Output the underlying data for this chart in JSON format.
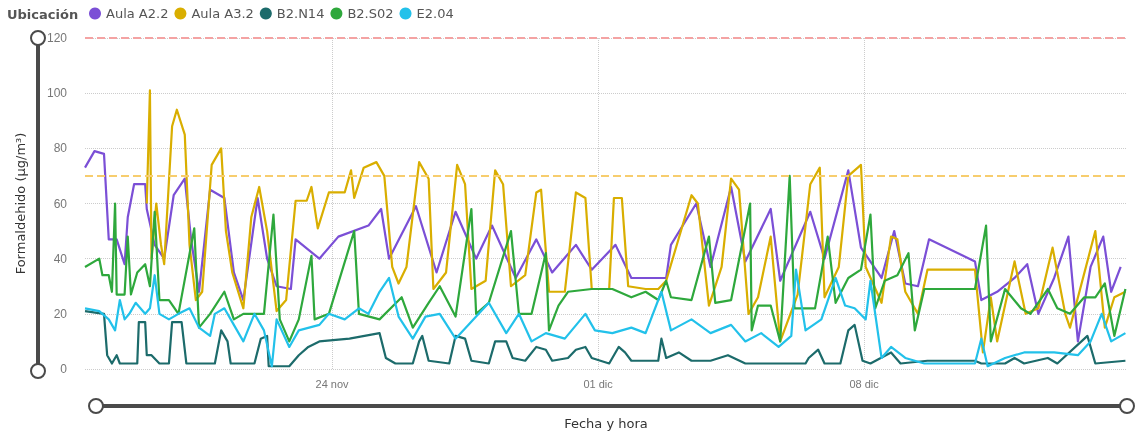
{
  "chart_data": {
    "type": "line",
    "xlabel": "Fecha y hora",
    "ylabel": "Formaldehido (µg/m³)",
    "legend_title": "Ubicación",
    "legend": "top left",
    "grid": true,
    "marker": "none",
    "xlim": [
      "--11-17T12:00",
      "--12-14T22:00"
    ],
    "xticks": [
      {
        "value": "--11-24",
        "label": "24 nov"
      },
      {
        "value": "--12-01",
        "label": "01 dic"
      },
      {
        "value": "--12-08",
        "label": "08 dic"
      }
    ],
    "ylim": [
      0,
      120
    ],
    "yticks": [
      0,
      20,
      40,
      60,
      80,
      100,
      120
    ],
    "ref_lines": [
      {
        "axis": "y",
        "value": 120,
        "color": "#f4a3a3",
        "line_style": "dashed"
      },
      {
        "axis": "y",
        "value": 70,
        "color": "#f7cd6e",
        "line_style": "dashed"
      }
    ],
    "series": [
      {
        "name": "Aula A2.2",
        "color": "#7b4fd6",
        "x": [
          "--11-17T12:00",
          "--11-17T18:00",
          "--11-18T00:00",
          "--11-18T03:00",
          "--11-18T08:00",
          "--11-18T13:00",
          "--11-18T15:00",
          "--11-18T19:00",
          "--11-19T02:00",
          "--11-19T03:00",
          "--11-19T08:00",
          "--11-19T14:00",
          "--11-19T20:00",
          "--11-20T03:00",
          "--11-20T07:00",
          "--11-20T12:00",
          "--11-20T19:00",
          "--11-21T04:00",
          "--11-21T10:00",
          "--11-21T16:00",
          "--11-22T01:00",
          "--11-22T07:00",
          "--11-22T13:00",
          "--11-22T22:00",
          "--11-23T01:00",
          "--11-23T16:00",
          "--11-24T04:00",
          "--11-24T23:00",
          "--11-25T07:00",
          "--11-25T12:00",
          "--11-26T05:00",
          "--11-26T18:00",
          "--11-27T06:00",
          "--11-27T19:00",
          "--11-28T05:00",
          "--11-28T20:00",
          "--11-29T09:00",
          "--11-29T19:00",
          "--11-30T10:00",
          "--11-30T20:00",
          "--12-01T11:00",
          "--12-01T21:00",
          "--12-02T08:00",
          "--12-02T19:00",
          "--12-02T22:00",
          "--12-03T14:00",
          "--12-03T23:00",
          "--12-04T12:00",
          "--12-04T21:00",
          "--12-05T13:00",
          "--12-05T19:00",
          "--12-06T14:00",
          "--12-06T23:00",
          "--12-07T14:00",
          "--12-07T22:00",
          "--12-08T11:00",
          "--12-08T19:00",
          "--12-09T02:00",
          "--12-09T10:00",
          "--12-09T17:00",
          "--12-10T22:00",
          "--12-11T02:00",
          "--12-11T12:00",
          "--12-11T23:00",
          "--12-12T07:00",
          "--12-12T14:00",
          "--12-13T00:00",
          "--12-13T09:00",
          "--12-13T15:00",
          "--12-13T23:00",
          "--12-14T07:00",
          "--12-14T12:00",
          "--12-14T18:00"
        ],
        "values": [
          73,
          79,
          78,
          47,
          47,
          38,
          55,
          67,
          67,
          58,
          45,
          40,
          63,
          69,
          47,
          28,
          65,
          62,
          35,
          25,
          62,
          40,
          30,
          29,
          47,
          40,
          48,
          52,
          58,
          40,
          59,
          35,
          57,
          40,
          52,
          33,
          47,
          35,
          45,
          36,
          45,
          33,
          33,
          33,
          45,
          60,
          37,
          66,
          39,
          58,
          32,
          57,
          40,
          72,
          44,
          33,
          50,
          31,
          30,
          47,
          39,
          25,
          28,
          33,
          38,
          20,
          33,
          48,
          10,
          37,
          48,
          28,
          37
        ]
      },
      {
        "name": "Aula A3.2",
        "color": "#d9ae00",
        "x": [
          "--11-19T03:00",
          "--11-19T05:00",
          "--11-19T06:00",
          "--11-19T09:00",
          "--11-19T12:00",
          "--11-19T14:00",
          "--11-19T19:00",
          "--11-19T22:00",
          "--11-20T03:00",
          "--11-20T06:00",
          "--11-20T10:00",
          "--11-20T14:00",
          "--11-20T20:00",
          "--11-21T02:00",
          "--11-21T05:00",
          "--11-21T09:00",
          "--11-21T16:00",
          "--11-21T21:00",
          "--11-22T02:00",
          "--11-22T07:00",
          "--11-22T13:00",
          "--11-22T19:00",
          "--11-23T01:00",
          "--11-23T08:00",
          "--11-23T11:00",
          "--11-23T15:00",
          "--11-23T22:00",
          "--11-24T08:00",
          "--11-24T12:00",
          "--11-24T14:00",
          "--11-24T20:00",
          "--11-25T04:00",
          "--11-25T09:00",
          "--11-25T14:00",
          "--11-25T18:00",
          "--11-25T23:00",
          "--11-26T07:00",
          "--11-26T13:00",
          "--11-26T16:00",
          "--11-27T00:00",
          "--11-27T07:00",
          "--11-27T12:00",
          "--11-27T16:00",
          "--11-28T01:00",
          "--11-28T07:00",
          "--11-28T12:00",
          "--11-28T17:00",
          "--11-29T02:00",
          "--11-29T09:00",
          "--11-29T12:00",
          "--11-29T17:00",
          "--11-30T03:00",
          "--11-30T10:00",
          "--11-30T16:00",
          "--11-30T20:00",
          "--12-01T07:00",
          "--12-01T10:00",
          "--12-01T15:00",
          "--12-01T19:00",
          "--12-02T06:00",
          "--12-02T14:00",
          "--12-02T19:00",
          "--12-03T11:00",
          "--12-03T15:00",
          "--12-03T22:00",
          "--12-04T06:00",
          "--12-04T12:00",
          "--12-04T17:00",
          "--12-04T23:00",
          "--12-05T05:00",
          "--12-05T13:00",
          "--12-05T19:00",
          "--12-06T06:00",
          "--12-06T14:00",
          "--12-06T20:00",
          "--12-06T23:00",
          "--12-07T08:00",
          "--12-07T14:00",
          "--12-07T22:00",
          "--12-08T01:00",
          "--12-08T11:00",
          "--12-08T17:00",
          "--12-08T21:00",
          "--12-09T02:00",
          "--12-09T10:00",
          "--12-09T16:00",
          "--12-10T22:00",
          "--12-11T03:00",
          "--12-11T08:00",
          "--12-11T12:00",
          "--12-11T23:00",
          "--12-12T06:00",
          "--12-12T14:00",
          "--12-12T23:00",
          "--12-13T07:00",
          "--12-13T10:00",
          "--12-14T02:00",
          "--12-14T08:00",
          "--12-14T14:00",
          "--12-14T21:00"
        ],
        "values": [
          60,
          101,
          40,
          60,
          45,
          38,
          88,
          94,
          85,
          45,
          25,
          28,
          74,
          80,
          50,
          35,
          22,
          55,
          66,
          50,
          21,
          25,
          61,
          61,
          66,
          51,
          64,
          64,
          72,
          62,
          73,
          75,
          70,
          37,
          31,
          37,
          75,
          69,
          29,
          35,
          74,
          67,
          29,
          32,
          72,
          67,
          30,
          34,
          64,
          65,
          28,
          28,
          64,
          62,
          29,
          29,
          62,
          62,
          30,
          29,
          29,
          32,
          63,
          60,
          23,
          37,
          69,
          65,
          20,
          26,
          48,
          10,
          27,
          67,
          73,
          26,
          37,
          70,
          74,
          37,
          24,
          48,
          47,
          28,
          20,
          36,
          36,
          6,
          26,
          10,
          39,
          20,
          22,
          44,
          20,
          15,
          50,
          15,
          26,
          28
        ]
      },
      {
        "name": "B2.N14",
        "color": "#1c6b6b",
        "x": [
          "--11-17T12:00",
          "--11-18T00:00",
          "--11-18T02:00",
          "--11-18T05:00",
          "--11-18T08:00",
          "--11-18T10:00",
          "--11-18T21:00",
          "--11-18T22:00",
          "--11-19T02:00",
          "--11-19T03:00",
          "--11-19T06:00",
          "--11-19T11:00",
          "--11-19T17:00",
          "--11-19T19:00",
          "--11-20T01:00",
          "--11-20T04:00",
          "--11-20T22:00",
          "--11-21T02:00",
          "--11-21T06:00",
          "--11-21T08:00",
          "--11-21T23:00",
          "--11-22T03:00",
          "--11-22T07:00",
          "--11-22T08:00",
          "--11-22T21:00",
          "--11-23T03:00",
          "--11-23T09:00",
          "--11-23T16:00",
          "--11-24T11:00",
          "--11-25T06:00",
          "--11-25T10:00",
          "--11-25T16:00",
          "--11-26T03:00",
          "--11-26T07:00",
          "--11-26T09:00",
          "--11-26T13:00",
          "--11-27T02:00",
          "--11-27T06:00",
          "--11-27T12:00",
          "--11-27T16:00",
          "--11-28T03:00",
          "--11-28T07:00",
          "--11-28T14:00",
          "--11-28T18:00",
          "--11-29T02:00",
          "--11-29T09:00",
          "--11-29T15:00",
          "--11-29T19:00",
          "--11-30T05:00",
          "--11-30T10:00",
          "--11-30T16:00",
          "--11-30T20:00",
          "--12-01T07:00",
          "--12-01T13:00",
          "--12-01T17:00",
          "--12-01T21:00",
          "--12-02T14:00",
          "--12-02T16:00",
          "--12-02T19:00",
          "--12-03T03:00",
          "--12-03T11:00",
          "--12-03T23:00",
          "--12-04T10:00",
          "--12-04T21:00",
          "--12-06T11:00",
          "--12-06T13:00",
          "--12-06T19:00",
          "--12-06T23:00",
          "--12-07T09:00",
          "--12-07T14:00",
          "--12-07T18:00",
          "--12-07T23:00",
          "--12-08T04:00",
          "--12-08T17:00",
          "--12-08T23:00",
          "--12-09T16:00",
          "--12-10T22:00",
          "--12-11T02:00",
          "--12-11T17:00",
          "--12-11T23:00",
          "--12-12T05:00",
          "--12-12T20:00",
          "--12-13T02:00",
          "--12-13T21:00",
          "--12-14T02:00",
          "--12-14T21:00"
        ],
        "values": [
          21,
          20,
          5,
          2,
          5,
          2,
          2,
          17,
          17,
          5,
          5,
          2,
          2,
          17,
          17,
          2,
          2,
          14,
          10,
          2,
          2,
          11,
          12,
          1,
          1,
          5,
          8,
          10,
          11,
          13,
          4,
          2,
          2,
          10,
          12,
          3,
          2,
          12,
          11,
          3,
          2,
          10,
          10,
          4,
          3,
          8,
          7,
          3,
          4,
          7,
          8,
          4,
          2,
          8,
          6,
          3,
          3,
          11,
          4,
          6,
          3,
          3,
          5,
          2,
          2,
          4,
          7,
          2,
          2,
          14,
          16,
          3,
          2,
          6,
          2,
          3,
          3,
          2,
          2,
          4,
          2,
          4,
          2,
          12,
          2,
          3
        ]
      },
      {
        "name": "B2.S02",
        "color": "#2ea83c",
        "x": [
          "--11-17T12:00",
          "--11-17T21:00",
          "--11-17T23:00",
          "--11-18T03:00",
          "--11-18T05:00",
          "--11-18T07:00",
          "--11-18T08:00",
          "--11-18T13:00",
          "--11-18T15:00",
          "--11-18T17:00",
          "--11-18T21:00",
          "--11-19T02:00",
          "--11-19T05:00",
          "--11-19T08:00",
          "--11-19T11:00",
          "--11-19T17:00",
          "--11-19T23:00",
          "--11-20T09:00",
          "--11-20T12:00",
          "--11-20T19:00",
          "--11-21T04:00",
          "--11-21T10:00",
          "--11-21T16:00",
          "--11-22T05:00",
          "--11-22T11:00",
          "--11-22T15:00",
          "--11-22T21:00",
          "--11-23T03:00",
          "--11-23T11:00",
          "--11-23T13:00",
          "--11-23T22:00",
          "--11-24T14:00",
          "--11-24T17:00",
          "--11-25T06:00",
          "--11-25T20:00",
          "--11-26T03:00",
          "--11-26T13:00",
          "--11-26T20:00",
          "--11-27T06:00",
          "--11-27T16:00",
          "--11-27T19:00",
          "--11-28T03:00",
          "--11-28T17:00",
          "--11-28T22:00",
          "--11-29T06:00",
          "--11-29T15:00",
          "--11-29T17:00",
          "--11-29T23:00",
          "--11-30T05:00",
          "--11-30T20:00",
          "--12-01T09:00",
          "--12-01T21:00",
          "--12-02T06:00",
          "--12-02T14:00",
          "--12-02T19:00",
          "--12-02T22:00",
          "--12-03T11:00",
          "--12-03T22:00",
          "--12-04T02:00",
          "--12-04T12:00",
          "--12-05T00:00",
          "--12-05T01:00",
          "--12-05T05:00",
          "--12-05T13:00",
          "--12-05T19:00",
          "--12-06T01:00",
          "--12-06T04:00",
          "--12-06T17:00",
          "--12-07T01:00",
          "--12-07T06:00",
          "--12-07T14:00",
          "--12-07T22:00",
          "--12-08T04:00",
          "--12-08T07:00",
          "--12-08T13:00",
          "--12-08T21:00",
          "--12-09T04:00",
          "--12-09T08:00",
          "--12-09T14:00",
          "--12-10T22:00",
          "--12-11T05:00",
          "--12-11T08:00",
          "--12-11T17:00",
          "--12-12T03:00",
          "--12-12T09:00",
          "--12-12T20:00",
          "--12-13T02:00",
          "--12-13T10:00",
          "--12-13T19:00",
          "--12-14T02:00",
          "--12-14T08:00",
          "--12-14T14:00",
          "--12-14T21:00"
        ],
        "values": [
          37,
          40,
          34,
          34,
          28,
          60,
          27,
          27,
          48,
          27,
          35,
          38,
          30,
          57,
          25,
          25,
          20,
          51,
          15,
          20,
          28,
          18,
          20,
          20,
          56,
          18,
          10,
          18,
          41,
          18,
          20,
          50,
          20,
          18,
          26,
          15,
          24,
          30,
          19,
          58,
          20,
          24,
          50,
          20,
          20,
          42,
          14,
          23,
          28,
          29,
          29,
          26,
          28,
          25,
          32,
          26,
          25,
          48,
          24,
          25,
          60,
          14,
          23,
          23,
          10,
          70,
          22,
          22,
          48,
          24,
          33,
          36,
          56,
          22,
          32,
          34,
          42,
          14,
          29,
          29,
          52,
          10,
          29,
          22,
          20,
          29,
          22,
          20,
          26,
          26,
          31,
          12,
          29
        ]
      },
      {
        "name": "E2.04",
        "color": "#22c1ea",
        "x": [
          "--11-17T12:00",
          "--11-17T21:00",
          "--11-18T03:00",
          "--11-18T07:00",
          "--11-18T10:00",
          "--11-18T13:00",
          "--11-18T16:00",
          "--11-18T20:00",
          "--11-19T02:00",
          "--11-19T05:00",
          "--11-19T08:00",
          "--11-19T11:00",
          "--11-19T17:00",
          "--11-19T23:00",
          "--11-20T06:00",
          "--11-20T12:00",
          "--11-20T19:00",
          "--11-20T22:00",
          "--11-21T04:00",
          "--11-21T10:00",
          "--11-21T16:00",
          "--11-21T23:00",
          "--11-22T05:00",
          "--11-22T10:00",
          "--11-22T13:00",
          "--11-22T21:00",
          "--11-23T03:00",
          "--11-23T16:00",
          "--11-23T22:00",
          "--11-24T08:00",
          "--11-24T17:00",
          "--11-24T23:00",
          "--11-25T06:00",
          "--11-25T12:00",
          "--11-25T18:00",
          "--11-26T03:00",
          "--11-26T11:00",
          "--11-26T20:00",
          "--11-27T06:00",
          "--11-27T19:00",
          "--11-28T03:00",
          "--11-28T14:00",
          "--11-28T22:00",
          "--11-29T06:00",
          "--11-29T15:00",
          "--11-30T03:00",
          "--11-30T16:00",
          "--11-30T22:00",
          "--12-01T09:00",
          "--12-01T21:00",
          "--12-02T06:00",
          "--12-02T16:00",
          "--12-02T22:00",
          "--12-03T11:00",
          "--12-03T23:00",
          "--12-04T12:00",
          "--12-04T21:00",
          "--12-05T07:00",
          "--12-05T18:00",
          "--12-06T02:00",
          "--12-06T05:00",
          "--12-06T11:00",
          "--12-06T21:00",
          "--12-07T06:00",
          "--12-07T12:00",
          "--12-07T18:00",
          "--12-08T01:00",
          "--12-08T04:00",
          "--12-08T11:00",
          "--12-08T17:00",
          "--12-09T02:00",
          "--12-09T14:00",
          "--12-10T22:00",
          "--12-11T02:00",
          "--12-11T06:00",
          "--12-11T17:00",
          "--12-12T05:00",
          "--12-13T00:00",
          "--12-13T15:00",
          "--12-13T23:00",
          "--12-14T06:00",
          "--12-14T12:00",
          "--12-14T21:00"
        ],
        "values": [
          22,
          21,
          18,
          14,
          25,
          18,
          20,
          24,
          20,
          22,
          34,
          20,
          18,
          20,
          22,
          15,
          12,
          20,
          22,
          16,
          10,
          20,
          14,
          1,
          18,
          8,
          14,
          16,
          20,
          18,
          22,
          20,
          28,
          33,
          19,
          11,
          19,
          20,
          11,
          19,
          24,
          13,
          20,
          10,
          13,
          11,
          20,
          14,
          13,
          15,
          13,
          28,
          14,
          18,
          13,
          16,
          10,
          13,
          8,
          12,
          36,
          14,
          18,
          33,
          23,
          22,
          18,
          32,
          4,
          8,
          4,
          2,
          2,
          11,
          1,
          4,
          6,
          6,
          5,
          10,
          20,
          10,
          13
        ]
      }
    ]
  }
}
